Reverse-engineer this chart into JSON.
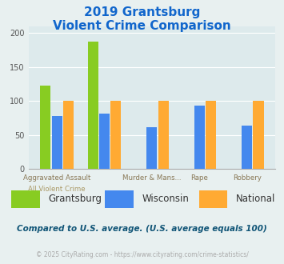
{
  "title_line1": "2019 Grantsburg",
  "title_line2": "Violent Crime Comparison",
  "categories": [
    "All Violent Crime",
    "Aggravated Assault",
    "Murder & Mans...",
    "Rape",
    "Robbery"
  ],
  "grantsburg": [
    123,
    188,
    0,
    0,
    0
  ],
  "wisconsin": [
    78,
    81,
    61,
    93,
    64
  ],
  "national": [
    100,
    100,
    100,
    100,
    100
  ],
  "colors": {
    "grantsburg": "#88cc22",
    "wisconsin": "#4488ee",
    "national": "#ffaa33"
  },
  "ylim": [
    0,
    210
  ],
  "yticks": [
    0,
    50,
    100,
    150,
    200
  ],
  "note": "Compared to U.S. average. (U.S. average equals 100)",
  "footer": "© 2025 CityRating.com - https://www.cityrating.com/crime-statistics/",
  "chart_bg": "#ddeaec",
  "fig_bg": "#e8f0f0",
  "white_bg": "#ffffff",
  "title_color": "#1166cc",
  "axis_label_color_top": "#888855",
  "axis_label_color_bot": "#aa9966",
  "note_color": "#115577",
  "footer_color": "#aaaaaa",
  "footer_link_color": "#4488cc"
}
